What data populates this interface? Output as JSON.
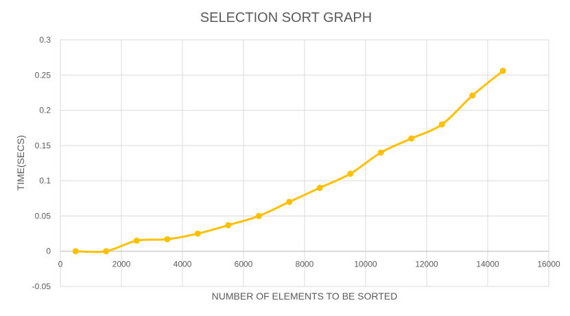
{
  "chart_data": {
    "type": "line",
    "title": "SELECTION SORT GRAPH",
    "xlabel": "NUMBER OF ELEMENTS TO BE SORTED",
    "ylabel": "TIME(SECS)",
    "xlim": [
      0,
      16000
    ],
    "ylim": [
      -0.05,
      0.3
    ],
    "x_ticks": [
      "0",
      "2000",
      "4000",
      "6000",
      "8000",
      "10000",
      "12000",
      "14000",
      "16000"
    ],
    "y_ticks": [
      "-0.05",
      "0",
      "0.05",
      "0.1",
      "0.15",
      "0.2",
      "0.25",
      "0.3"
    ],
    "grid": true,
    "smooth": true,
    "series": [
      {
        "color": "#FFC000",
        "points": [
          {
            "x": 500,
            "y": 0.0
          },
          {
            "x": 1500,
            "y": 0.0
          },
          {
            "x": 2500,
            "y": 0.015
          },
          {
            "x": 3500,
            "y": 0.017
          },
          {
            "x": 4500,
            "y": 0.025
          },
          {
            "x": 5500,
            "y": 0.037
          },
          {
            "x": 6500,
            "y": 0.05
          },
          {
            "x": 7500,
            "y": 0.07
          },
          {
            "x": 8500,
            "y": 0.09
          },
          {
            "x": 9500,
            "y": 0.11
          },
          {
            "x": 10500,
            "y": 0.14
          },
          {
            "x": 11500,
            "y": 0.16
          },
          {
            "x": 12500,
            "y": 0.18
          },
          {
            "x": 13500,
            "y": 0.221
          },
          {
            "x": 14500,
            "y": 0.256
          }
        ]
      }
    ]
  }
}
